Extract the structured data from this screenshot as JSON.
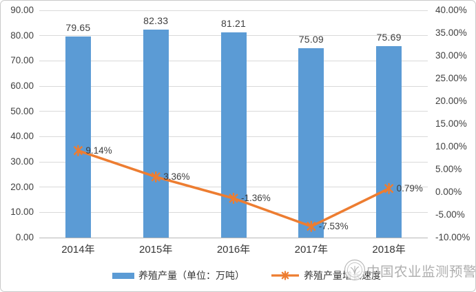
{
  "chart_data": {
    "type": "bar+line combo",
    "title": "",
    "categories": [
      "2014年",
      "2015年",
      "2016年",
      "2017年",
      "2018年"
    ],
    "series": [
      {
        "name": "养殖产量（单位：万吨）",
        "type": "bar",
        "axis": "left",
        "color": "#5B9BD5",
        "values": [
          79.65,
          82.33,
          81.21,
          75.09,
          75.69
        ],
        "data_labels": [
          "79.65",
          "82.33",
          "81.21",
          "75.09",
          "75.69"
        ]
      },
      {
        "name": "养殖产量增长速度",
        "type": "line",
        "axis": "right",
        "color": "#ED7D31",
        "marker": "asterisk",
        "values": [
          9.14,
          3.36,
          -1.36,
          -7.53,
          0.79
        ],
        "data_labels": [
          "9.14%",
          "3.36%",
          "-1.36%",
          "-7.53%",
          "0.79%"
        ]
      }
    ],
    "left_axis": {
      "min": 0,
      "max": 90,
      "step": 10,
      "tick_values": [
        0,
        10,
        20,
        30,
        40,
        50,
        60,
        70,
        80,
        90
      ],
      "tick_labels": [
        "0.00",
        "10.00",
        "20.00",
        "30.00",
        "40.00",
        "50.00",
        "60.00",
        "70.00",
        "80.00",
        "90.00"
      ]
    },
    "right_axis": {
      "min": -10,
      "max": 40,
      "step": 5,
      "tick_values": [
        -10,
        -5,
        0,
        5,
        10,
        15,
        20,
        25,
        30,
        35,
        40
      ],
      "tick_labels": [
        "-10.00%",
        "-5.00%",
        "0.00%",
        "5.00%",
        "10.00%",
        "15.00%",
        "20.00%",
        "25.00%",
        "30.00%",
        "35.00%",
        "40.00%"
      ]
    },
    "grid": true,
    "legend_position": "bottom"
  },
  "colors": {
    "bar": "#5B9BD5",
    "line": "#ED7D31",
    "gridline": "#d9d9d9",
    "axis_text": "#404040",
    "watermark": "#ababab"
  },
  "watermark": {
    "text": "中国农业监测预警",
    "logo": "agriculture-seal-logo"
  }
}
